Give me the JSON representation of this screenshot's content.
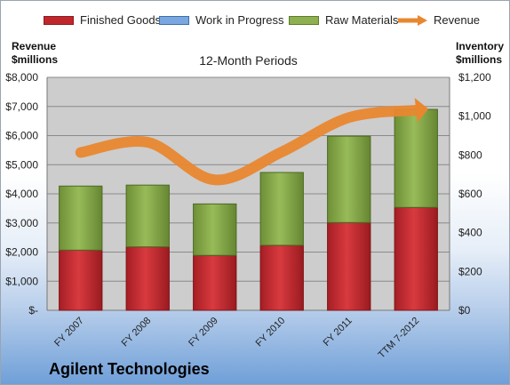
{
  "chart_data": {
    "type": "bar",
    "title": "12-Month Periods",
    "company": "Agilent Technologies",
    "categories": [
      "FY 2007",
      "FY 2008",
      "FY 2009",
      "FY 2010",
      "FY 2011",
      "TTM 7-2012"
    ],
    "left_axis": {
      "label_line1": "Revenue",
      "label_line2": "$millions",
      "ylim": [
        0,
        8000
      ],
      "ticks": [
        "$-",
        "$1,000",
        "$2,000",
        "$3,000",
        "$4,000",
        "$5,000",
        "$6,000",
        "$7,000",
        "$8,000"
      ]
    },
    "right_axis": {
      "label_line1": "Inventory",
      "label_line2": "$millions",
      "ylim": [
        0,
        1200
      ],
      "ticks": [
        "$0",
        "$200",
        "$400",
        "$600",
        "$800",
        "$1,000",
        "$1,200"
      ]
    },
    "series": [
      {
        "name": "Finished Goods",
        "axis": "right",
        "kind": "stacked-bar",
        "color": "#c0272d",
        "values": [
          310,
          327,
          283,
          335,
          452,
          530
        ]
      },
      {
        "name": "Work in Progress",
        "axis": "right",
        "kind": "stacked-bar",
        "color": "#4f81bd",
        "values": [
          0,
          0,
          0,
          0,
          0,
          0
        ]
      },
      {
        "name": "Raw Materials",
        "axis": "right",
        "kind": "stacked-bar",
        "color": "#7a9e3e",
        "values": [
          330,
          318,
          265,
          375,
          445,
          505
        ]
      },
      {
        "name": "Revenue",
        "axis": "left",
        "kind": "line",
        "color": "#e8872f",
        "values": [
          5420,
          5770,
          4480,
          5440,
          6620,
          6870
        ]
      }
    ],
    "grid": true,
    "legend_position": "top"
  },
  "colors": {
    "plot_background": "#cdcdcd",
    "gridline": "#8a8a8a"
  }
}
